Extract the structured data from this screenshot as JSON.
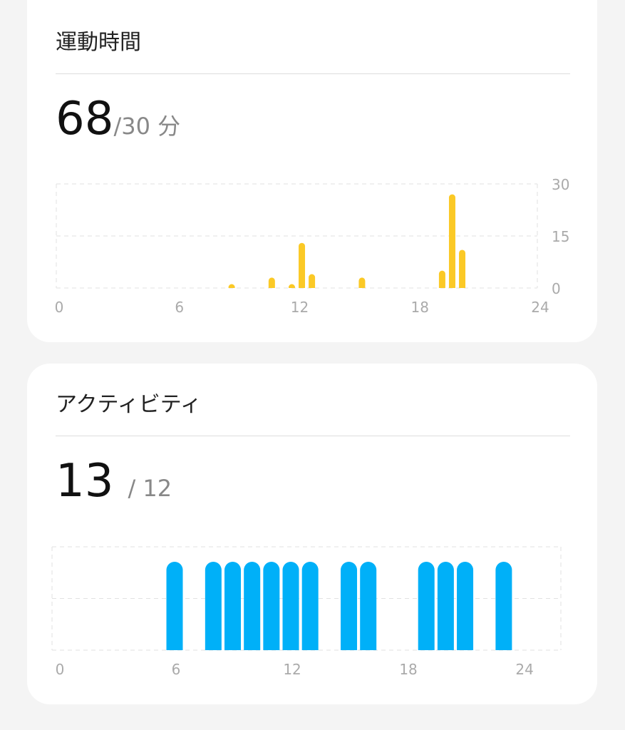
{
  "exercise": {
    "title": "運動時間",
    "value": "68",
    "goal": "/30 分",
    "chart_data": {
      "type": "bar",
      "x_unit": "hour",
      "x_ticks": [
        "0",
        "6",
        "12",
        "18",
        "24"
      ],
      "y_ticks": [
        "30",
        "15",
        "0"
      ],
      "ylim": [
        0,
        30
      ],
      "xlim": [
        0,
        24
      ],
      "color": "#fbc926",
      "bars": [
        {
          "x": 8.5,
          "value": 1
        },
        {
          "x": 10.5,
          "value": 3
        },
        {
          "x": 11.5,
          "value": 1
        },
        {
          "x": 12,
          "value": 13
        },
        {
          "x": 12.5,
          "value": 4
        },
        {
          "x": 15,
          "value": 3
        },
        {
          "x": 19,
          "value": 5
        },
        {
          "x": 19.5,
          "value": 27
        },
        {
          "x": 20,
          "value": 11
        }
      ]
    }
  },
  "activity": {
    "title": "アクティビティ",
    "value": "13",
    "goal": "/ 12",
    "chart_data": {
      "type": "bar",
      "x_unit": "hour",
      "x_ticks": [
        "0",
        "6",
        "12",
        "18",
        "24"
      ],
      "xlim": [
        0,
        24
      ],
      "color": "#00b0f8",
      "active_hours": [
        6,
        8,
        9,
        10,
        11,
        12,
        13,
        15,
        16,
        19,
        20,
        21,
        23
      ]
    }
  }
}
